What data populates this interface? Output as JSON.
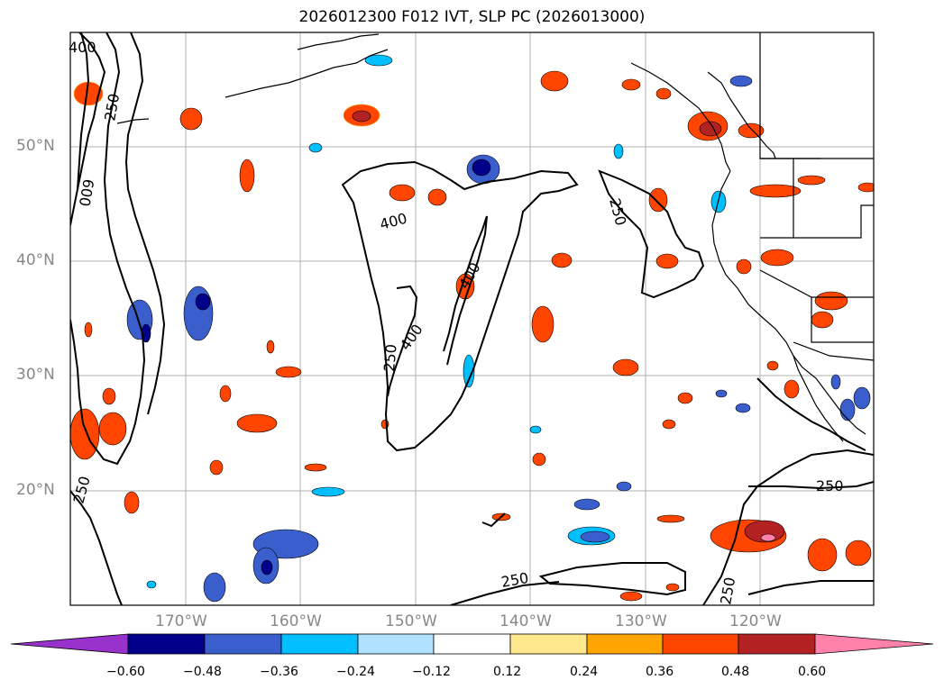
{
  "title": "2026012300 F012 IVT, SLP PC (2026013000)",
  "lat_labels": [
    "50°N",
    "40°N",
    "30°N",
    "20°N"
  ],
  "lon_labels": [
    "170°W",
    "160°W",
    "150°W",
    "140°W",
    "130°W",
    "120°W"
  ],
  "contour_labels": [
    "400",
    "250",
    "600",
    "400",
    "250",
    "400",
    "400",
    "250",
    "250",
    "250",
    "250",
    "250"
  ],
  "colorbar": {
    "ticks": [
      "−0.60",
      "−0.48",
      "−0.36",
      "−0.24",
      "−0.12",
      "0.12",
      "0.24",
      "0.36",
      "0.48",
      "0.60"
    ],
    "colors": [
      "#9932cc",
      "#00008b",
      "#3a5fcd",
      "#00bfff",
      "#b0e2ff",
      "#ffffff",
      "#ffe88c",
      "#ffa500",
      "#ff4500",
      "#b22222",
      "#ff82ab"
    ]
  }
}
